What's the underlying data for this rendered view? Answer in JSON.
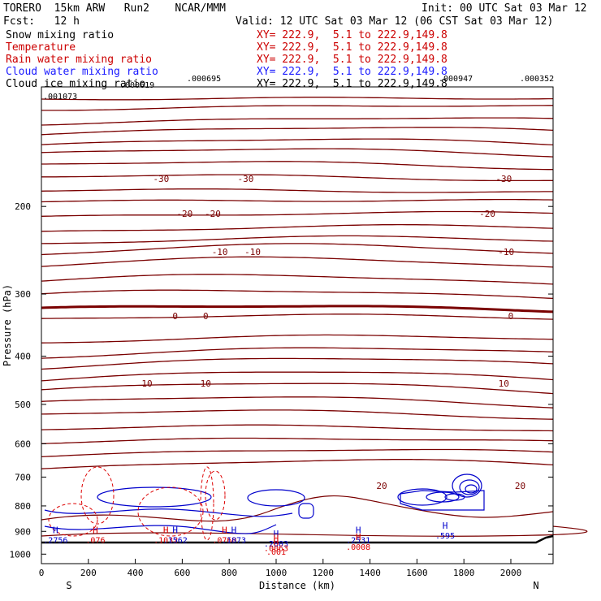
{
  "header": {
    "model": "TORERO  15km ARW   Run2    NCAR/MMM",
    "init": "Init: 00 UTC Sat 03 Mar 12",
    "fcst": "Fcst:   12 h",
    "valid": "Valid: 12 UTC Sat 03 Mar 12 (06 CST Sat 03 Mar 12)"
  },
  "fields": [
    {
      "name": "Snow mixing ratio",
      "xy": "XY= 222.9,  5.1 to 222.9,149.8",
      "color": "#000000"
    },
    {
      "name": "Temperature",
      "xy": "XY= 222.9,  5.1 to 222.9,149.8",
      "color": "#cc0000"
    },
    {
      "name": "Rain water mixing ratio",
      "xy": "XY= 222.9,  5.1 to 222.9,149.8",
      "color": "#cc0000"
    },
    {
      "name": "Cloud water mixing ratio",
      "xy": "XY= 222.9,  5.1 to 222.9,149.8",
      "color": "#1a1aff"
    },
    {
      "name": "Cloud ice mixing ratio",
      "xy": "XY= 222.9,  5.1 to 222.9,149.8",
      "color": "#000000"
    }
  ],
  "colors": {
    "temperature": "#7a0000",
    "rain": "#dd0000",
    "cloud_water": "#0000cc",
    "axis": "#000000"
  },
  "chart_data": {
    "type": "line",
    "title": "",
    "xlabel": "Distance (km)",
    "ylabel": "Pressure (hPa)",
    "xlim": [
      0,
      2180
    ],
    "ylim": [
      1045,
      115
    ],
    "y_scale": "log",
    "x_ticks": [
      0,
      200,
      400,
      600,
      800,
      1000,
      1200,
      1400,
      1600,
      1800,
      2000
    ],
    "y_ticks": [
      200,
      300,
      400,
      500,
      600,
      700,
      800,
      900,
      1000
    ],
    "x_end_labels": {
      "left": "S",
      "right": "N"
    },
    "temperature_isotherms": [
      {
        "value": -30,
        "label": "-30",
        "labels_at_km": [
          510,
          870,
          1970
        ]
      },
      {
        "value": -20,
        "label": "-20",
        "labels_at_km": [
          610,
          730,
          1900
        ]
      },
      {
        "value": -10,
        "label": "-10",
        "labels_at_km": [
          760,
          900,
          1980
        ]
      },
      {
        "value": 0,
        "label": "0",
        "labels_at_km": [
          570,
          700,
          2000
        ]
      },
      {
        "value": 10,
        "label": "10",
        "labels_at_km": [
          450,
          700,
          1970
        ]
      },
      {
        "value": 20,
        "label": "20",
        "labels_at_km": [
          1450,
          2040
        ]
      }
    ],
    "top_labels": [
      ".000695",
      ".000619",
      ".000947",
      ".000352",
      ".001073"
    ],
    "maxima": [
      {
        "mark": "H",
        "value": ".2756",
        "x_km": 60,
        "p_hPa": 950,
        "field": "cloud_water"
      },
      {
        "mark": "H",
        "value": ".076",
        "x_km": 230,
        "p_hPa": 950,
        "field": "rain"
      },
      {
        "mark": "H",
        "value": ".1032",
        "x_km": 530,
        "p_hPa": 950,
        "field": "rain"
      },
      {
        "mark": "H",
        "value": ".1562",
        "x_km": 570,
        "p_hPa": 950,
        "field": "cloud_water"
      },
      {
        "mark": "H",
        "value": ".0760",
        "x_km": 780,
        "p_hPa": 950,
        "field": "rain"
      },
      {
        "mark": "H",
        "value": ".1873",
        "x_km": 820,
        "p_hPa": 950,
        "field": "cloud_water"
      },
      {
        "mark": "H",
        "value": ".2803",
        "x_km": 1000,
        "p_hPa": 965,
        "field": "cloud_water"
      },
      {
        "mark": "H",
        "value": ".0063",
        "x_km": 1000,
        "p_hPa": 985,
        "field": "rain"
      },
      {
        "mark": "H",
        "value": ".001",
        "x_km": 1000,
        "p_hPa": 1003,
        "field": "rain"
      },
      {
        "mark": "H",
        "value": ".2531",
        "x_km": 1350,
        "p_hPa": 950,
        "field": "cloud_water"
      },
      {
        "mark": "H",
        "value": ".0008",
        "x_km": 1350,
        "p_hPa": 980,
        "field": "rain"
      },
      {
        "mark": "H",
        "value": ".595",
        "x_km": 1720,
        "p_hPa": 930,
        "field": "cloud_water"
      }
    ]
  }
}
